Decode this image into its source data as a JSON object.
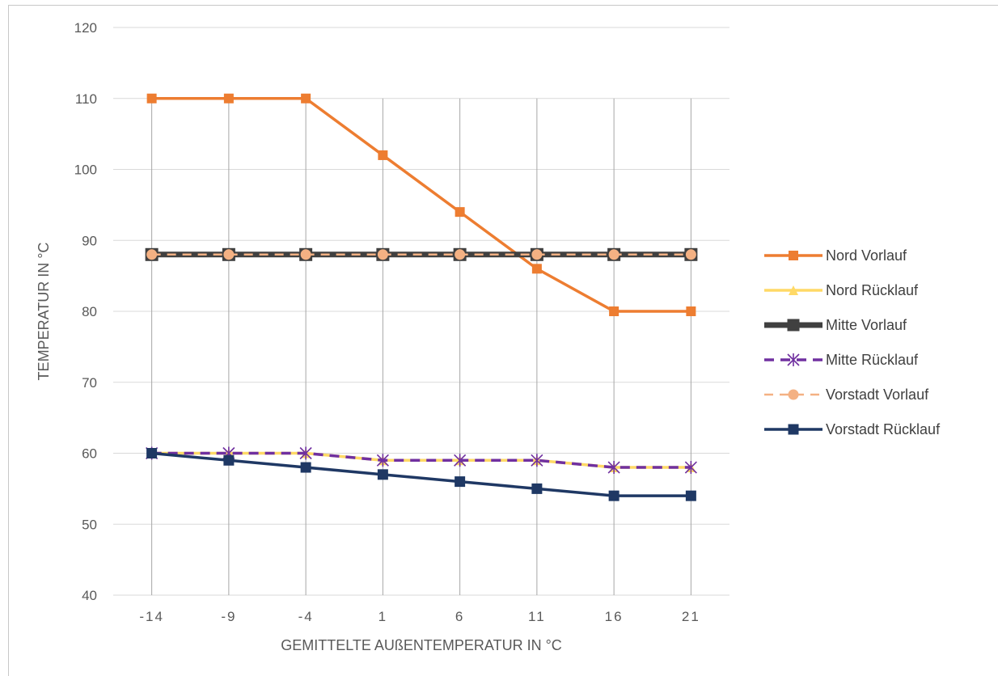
{
  "chart_data": {
    "type": "line",
    "title": "",
    "xlabel": "GEMITTELTE AUßENTEMPERATUR IN °C",
    "ylabel": "TEMPERATUR IN °C",
    "categories": [
      "-14",
      "-9",
      "-4",
      "1",
      "6",
      "11",
      "16",
      "21"
    ],
    "x_tick_labels": [
      "-14",
      "-9",
      "-4",
      "1",
      "6",
      "11",
      "16",
      "21"
    ],
    "ylim": [
      40,
      120
    ],
    "yticks": [
      40,
      50,
      60,
      70,
      80,
      90,
      100,
      110,
      120
    ],
    "grid": {
      "horizontal": true,
      "vertical": true
    },
    "legend_position": "right",
    "series": [
      {
        "name": "Nord Vorlauf",
        "values": [
          110,
          110,
          110,
          102,
          94,
          86,
          80,
          80
        ],
        "color": "#ED7D31",
        "marker": "square",
        "dash": "solid"
      },
      {
        "name": "Nord Rücklauf",
        "values": [
          60,
          60,
          60,
          59,
          59,
          59,
          58,
          58
        ],
        "color": "#FFD966",
        "marker": "triangle",
        "dash": "solid"
      },
      {
        "name": "Mitte Vorlauf",
        "values": [
          88,
          88,
          88,
          88,
          88,
          88,
          88,
          88
        ],
        "color": "#404040",
        "marker": "square",
        "dash": "solid"
      },
      {
        "name": "Mitte Rücklauf",
        "values": [
          60,
          60,
          60,
          59,
          59,
          59,
          58,
          58
        ],
        "color": "#7030A0",
        "marker": "star",
        "dash": "dashed"
      },
      {
        "name": "Vorstadt Vorlauf",
        "values": [
          88,
          88,
          88,
          88,
          88,
          88,
          88,
          88
        ],
        "color": "#F4B183",
        "marker": "circle",
        "dash": "dashed"
      },
      {
        "name": "Vorstadt Rücklauf",
        "values": [
          60,
          59,
          58,
          57,
          56,
          55,
          54,
          54
        ],
        "color": "#1F3864",
        "marker": "square",
        "dash": "solid"
      }
    ]
  }
}
